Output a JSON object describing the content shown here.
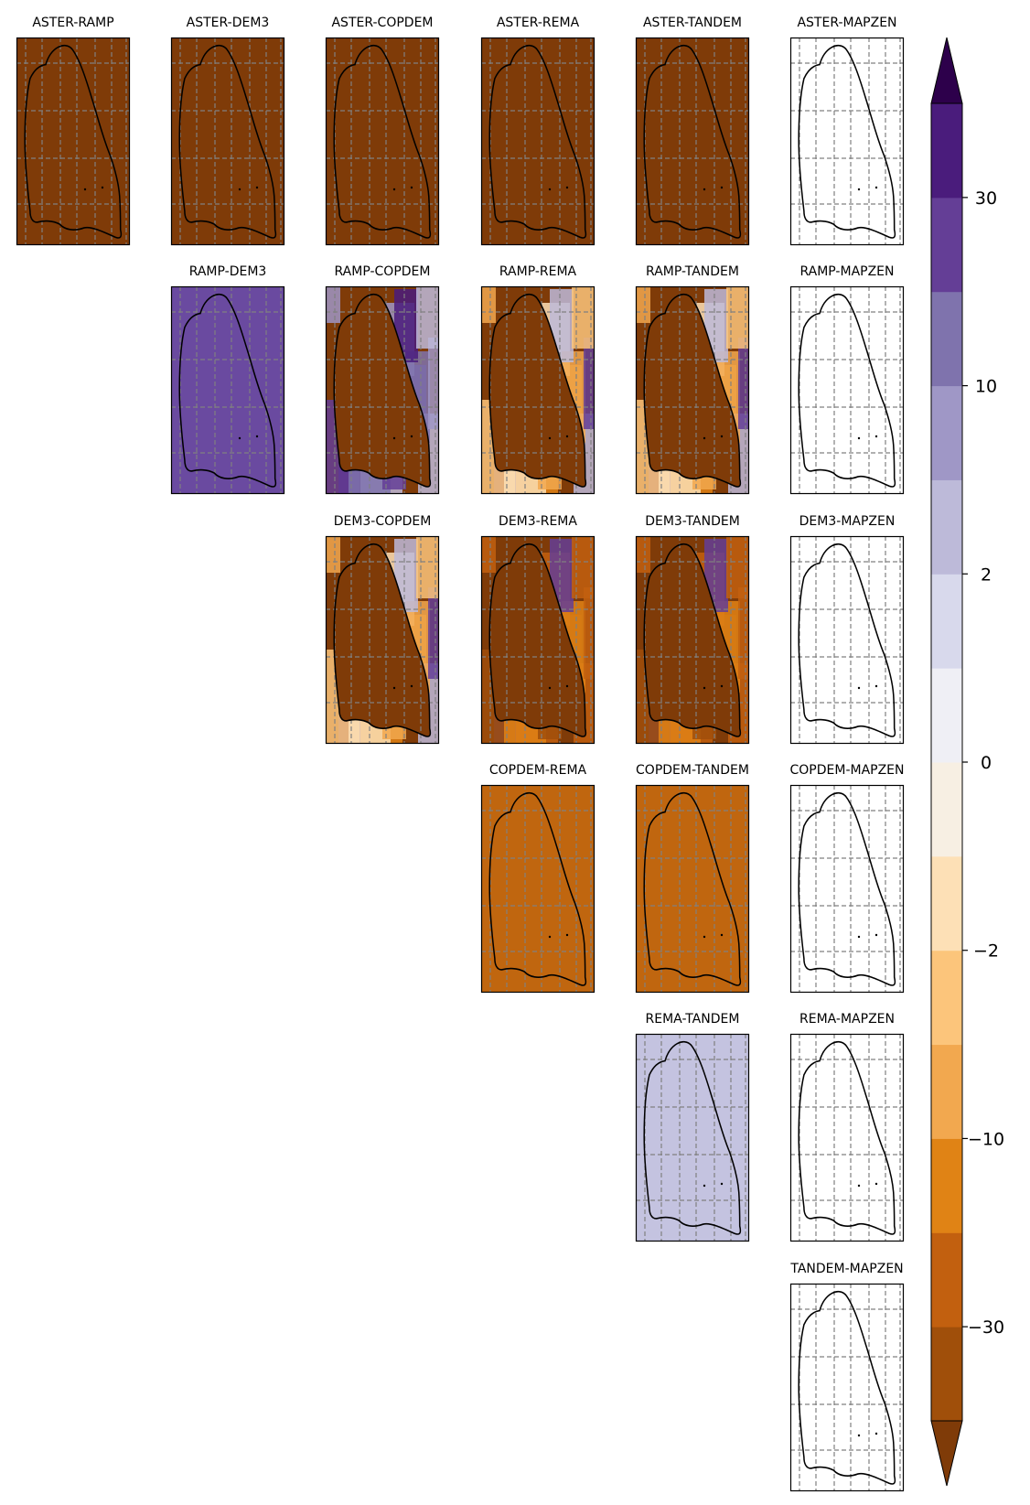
{
  "figure": {
    "panels": [
      {
        "label": "ASTER-RAMP",
        "row": 0,
        "col": 0,
        "fill": "#7f3b08",
        "pattern": "flat"
      },
      {
        "label": "ASTER-DEM3",
        "row": 0,
        "col": 1,
        "fill": "#7f3b08",
        "pattern": "flat"
      },
      {
        "label": "ASTER-COPDEM",
        "row": 0,
        "col": 2,
        "fill": "#7f3b08",
        "pattern": "flat"
      },
      {
        "label": "ASTER-REMA",
        "row": 0,
        "col": 3,
        "fill": "#7f3b08",
        "pattern": "flat"
      },
      {
        "label": "ASTER-TANDEM",
        "row": 0,
        "col": 4,
        "fill": "#7f3b08",
        "pattern": "flat"
      },
      {
        "label": "ASTER-MAPZEN",
        "row": 0,
        "col": 5,
        "fill": "#ffffff",
        "pattern": "flat"
      },
      {
        "label": "RAMP-DEM3",
        "row": 1,
        "col": 1,
        "fill": "#6a4aa0",
        "pattern": "flat"
      },
      {
        "label": "RAMP-COPDEM",
        "row": 1,
        "col": 2,
        "fill": "#7f3b08",
        "pattern": "purple"
      },
      {
        "label": "RAMP-REMA",
        "row": 1,
        "col": 3,
        "fill": "#7f3b08",
        "pattern": "mixed"
      },
      {
        "label": "RAMP-TANDEM",
        "row": 1,
        "col": 4,
        "fill": "#7f3b08",
        "pattern": "mixed"
      },
      {
        "label": "RAMP-MAPZEN",
        "row": 1,
        "col": 5,
        "fill": "#ffffff",
        "pattern": "flat"
      },
      {
        "label": "DEM3-COPDEM",
        "row": 2,
        "col": 2,
        "fill": "#7f3b08",
        "pattern": "mixed"
      },
      {
        "label": "DEM3-REMA",
        "row": 2,
        "col": 3,
        "fill": "#7f3b08",
        "pattern": "orange"
      },
      {
        "label": "DEM3-TANDEM",
        "row": 2,
        "col": 4,
        "fill": "#7f3b08",
        "pattern": "orange"
      },
      {
        "label": "DEM3-MAPZEN",
        "row": 2,
        "col": 5,
        "fill": "#ffffff",
        "pattern": "flat"
      },
      {
        "label": "COPDEM-REMA",
        "row": 3,
        "col": 3,
        "fill": "#c0660f",
        "pattern": "flat"
      },
      {
        "label": "COPDEM-TANDEM",
        "row": 3,
        "col": 4,
        "fill": "#c0660f",
        "pattern": "flat"
      },
      {
        "label": "COPDEM-MAPZEN",
        "row": 3,
        "col": 5,
        "fill": "#ffffff",
        "pattern": "flat"
      },
      {
        "label": "REMA-TANDEM",
        "row": 4,
        "col": 4,
        "fill": "#c4c3e0",
        "pattern": "flat"
      },
      {
        "label": "REMA-MAPZEN",
        "row": 4,
        "col": 5,
        "fill": "#ffffff",
        "pattern": "flat"
      },
      {
        "label": "TANDEM-MAPZEN",
        "row": 5,
        "col": 5,
        "fill": "#ffffff",
        "pattern": "flat"
      }
    ],
    "colorbar": {
      "tick_labels": [
        "30",
        "10",
        "2",
        "0",
        "−2",
        "−10",
        "−30"
      ],
      "extend": "both",
      "colors_bottom_to_top": [
        "#a04f0a",
        "#c2600f",
        "#e08315",
        "#f2a84f",
        "#fcc57b",
        "#fde0b6",
        "#f7efe3",
        "#efeff5",
        "#d8d9ec",
        "#bdbad9",
        "#9f97c6",
        "#7f73ad",
        "#643e96",
        "#4a1c7c"
      ],
      "under_color": "#7f3b08",
      "over_color": "#2d004b"
    }
  }
}
